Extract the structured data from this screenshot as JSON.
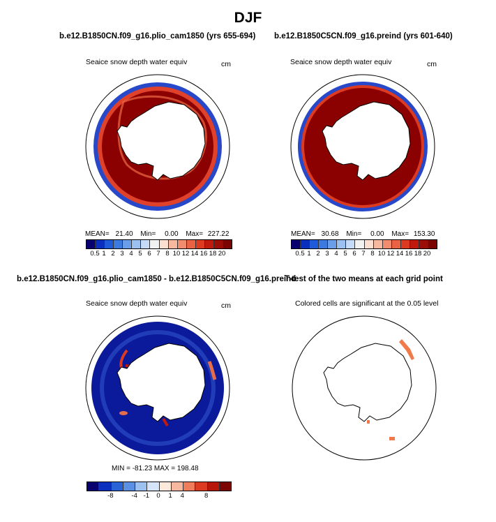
{
  "figure": {
    "title": "DJF",
    "left_run": "b.e12.B1850CN.f09_g16.plio_cam1850 (yrs 655-694)",
    "right_run": "b.e12.B1850C5CN.f09_g16.preind (yrs 601-640)",
    "diff_title": "b.e12.B1850CN.f09_g16.plio_cam1850 - b.e12.B1850C5CN.f09_g16.preind",
    "ttest_title": "T-test of the two means at each grid point"
  },
  "panels": {
    "top_left": {
      "field": "Seaice snow depth water equiv",
      "units": "cm",
      "stats": {
        "mean_label": "MEAN=",
        "mean": "21.40",
        "min_label": "Min=",
        "min": "0.00",
        "max_label": "Max=",
        "max": "227.22"
      }
    },
    "top_right": {
      "field": "Seaice snow depth water equiv",
      "units": "cm",
      "stats": {
        "mean_label": "MEAN=",
        "mean": "30.68",
        "min_label": "Min=",
        "min": "0.00",
        "max_label": "Max=",
        "max": "153.30"
      }
    },
    "bottom_left": {
      "field": "Seaice snow depth water equiv",
      "units": "cm",
      "stats": "MIN = -81.23  MAX = 198.48"
    },
    "bottom_right": {
      "note": "Colored cells are significant at the 0.05 level"
    }
  },
  "colors": {
    "abs_scale": [
      "#08006f",
      "#0a2fbf",
      "#1f5bd8",
      "#3d7ae0",
      "#6b9ee8",
      "#9cc0f0",
      "#c5dbf7",
      "#f2f2f2",
      "#fbe0d2",
      "#f7b8a0",
      "#f28c6e",
      "#ea6244",
      "#dd3b21",
      "#c01a0e",
      "#9b0d07",
      "#7a0502"
    ],
    "diff_scale": [
      "#08006f",
      "#0a2fbf",
      "#2a62d8",
      "#5b8fe4",
      "#9cc0f0",
      "#d5e4f8",
      "#fde8dc",
      "#f7b8a0",
      "#ef7d5c",
      "#dd3b21",
      "#b71709",
      "#7a0502"
    ],
    "ice_red": "#8b0000",
    "diff_blue": "#0a1a9a",
    "ttest": "#f07a4a"
  },
  "chart_data": [
    {
      "type": "heatmap",
      "panel": "top_left",
      "projection": "south polar stereographic",
      "title": "Seaice snow depth water equiv",
      "units": "cm",
      "colorbar_labels": [
        "0.5",
        "1",
        "2",
        "3",
        "4",
        "5",
        "6",
        "7",
        "8",
        "10",
        "12",
        "14",
        "16",
        "18",
        "20"
      ],
      "mean": 21.4,
      "min": 0.0,
      "max": 227.22
    },
    {
      "type": "heatmap",
      "panel": "top_right",
      "projection": "south polar stereographic",
      "title": "Seaice snow depth water equiv",
      "units": "cm",
      "colorbar_labels": [
        "0.5",
        "1",
        "2",
        "3",
        "4",
        "5",
        "6",
        "7",
        "8",
        "10",
        "12",
        "14",
        "16",
        "18",
        "20"
      ],
      "mean": 30.68,
      "min": 0.0,
      "max": 153.3
    },
    {
      "type": "heatmap",
      "panel": "bottom_left",
      "projection": "south polar stereographic",
      "title": "Seaice snow depth water equiv",
      "units": "cm",
      "colorbar_labels": [
        "-8",
        "-4",
        "-1",
        "0",
        "1",
        "4",
        "8"
      ],
      "min": -81.23,
      "max": 198.48
    },
    {
      "type": "heatmap",
      "panel": "bottom_right",
      "projection": "south polar stereographic",
      "title": "Colored cells are significant at the 0.05 level",
      "significance_level": 0.05
    }
  ]
}
